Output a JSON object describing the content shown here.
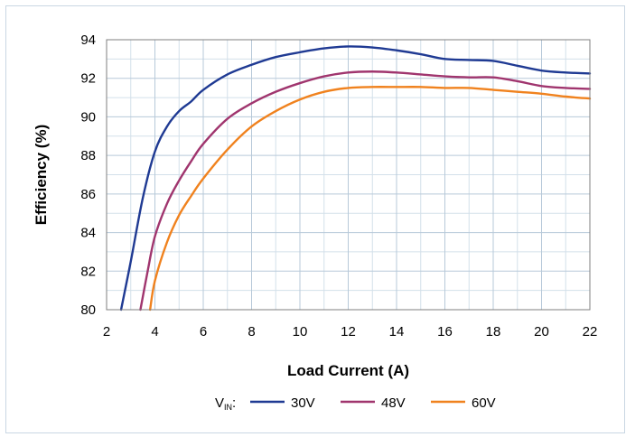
{
  "chart_data": {
    "type": "line",
    "xlabel": "Load Current (A)",
    "ylabel": "Efficiency (%)",
    "xlim": [
      2,
      22
    ],
    "ylim": [
      80,
      94
    ],
    "xticks": [
      2,
      4,
      6,
      8,
      10,
      12,
      14,
      16,
      18,
      20,
      22
    ],
    "yticks": [
      80,
      82,
      84,
      86,
      88,
      90,
      92,
      94
    ],
    "x_minor_step": 1,
    "y_minor_step": 1,
    "grid": true,
    "legend": {
      "position": "bottom",
      "prefix_main": "V",
      "prefix_sub": "IN",
      "prefix_suffix": ":"
    },
    "series": [
      {
        "name": "30V",
        "color": "#1f3a93",
        "points": [
          [
            2.6,
            80.0
          ],
          [
            3.0,
            82.5
          ],
          [
            3.5,
            85.8
          ],
          [
            4.0,
            88.2
          ],
          [
            4.5,
            89.5
          ],
          [
            5.0,
            90.3
          ],
          [
            5.5,
            90.8
          ],
          [
            6.0,
            91.4
          ],
          [
            7.0,
            92.2
          ],
          [
            8.0,
            92.7
          ],
          [
            9.0,
            93.1
          ],
          [
            10.0,
            93.35
          ],
          [
            11.0,
            93.55
          ],
          [
            12.0,
            93.65
          ],
          [
            13.0,
            93.6
          ],
          [
            14.0,
            93.45
          ],
          [
            15.0,
            93.25
          ],
          [
            16.0,
            93.0
          ],
          [
            17.0,
            92.95
          ],
          [
            18.0,
            92.9
          ],
          [
            19.0,
            92.65
          ],
          [
            20.0,
            92.4
          ],
          [
            21.0,
            92.3
          ],
          [
            22.0,
            92.25
          ]
        ]
      },
      {
        "name": "48V",
        "color": "#a0356e",
        "points": [
          [
            3.4,
            80.0
          ],
          [
            3.7,
            82.0
          ],
          [
            4.0,
            83.8
          ],
          [
            4.5,
            85.5
          ],
          [
            5.0,
            86.7
          ],
          [
            5.5,
            87.7
          ],
          [
            6.0,
            88.6
          ],
          [
            7.0,
            89.9
          ],
          [
            8.0,
            90.7
          ],
          [
            9.0,
            91.3
          ],
          [
            10.0,
            91.75
          ],
          [
            11.0,
            92.1
          ],
          [
            12.0,
            92.3
          ],
          [
            13.0,
            92.35
          ],
          [
            14.0,
            92.3
          ],
          [
            15.0,
            92.2
          ],
          [
            16.0,
            92.1
          ],
          [
            17.0,
            92.05
          ],
          [
            18.0,
            92.05
          ],
          [
            19.0,
            91.85
          ],
          [
            20.0,
            91.6
          ],
          [
            21.0,
            91.5
          ],
          [
            22.0,
            91.45
          ]
        ]
      },
      {
        "name": "60V",
        "color": "#f0821e",
        "points": [
          [
            3.8,
            80.0
          ],
          [
            4.0,
            81.5
          ],
          [
            4.5,
            83.5
          ],
          [
            5.0,
            84.9
          ],
          [
            5.5,
            85.9
          ],
          [
            6.0,
            86.8
          ],
          [
            7.0,
            88.3
          ],
          [
            8.0,
            89.5
          ],
          [
            9.0,
            90.3
          ],
          [
            10.0,
            90.9
          ],
          [
            11.0,
            91.3
          ],
          [
            12.0,
            91.5
          ],
          [
            13.0,
            91.55
          ],
          [
            14.0,
            91.55
          ],
          [
            15.0,
            91.55
          ],
          [
            16.0,
            91.5
          ],
          [
            17.0,
            91.5
          ],
          [
            18.0,
            91.4
          ],
          [
            19.0,
            91.3
          ],
          [
            20.0,
            91.2
          ],
          [
            21.0,
            91.05
          ],
          [
            22.0,
            90.95
          ]
        ]
      }
    ]
  }
}
